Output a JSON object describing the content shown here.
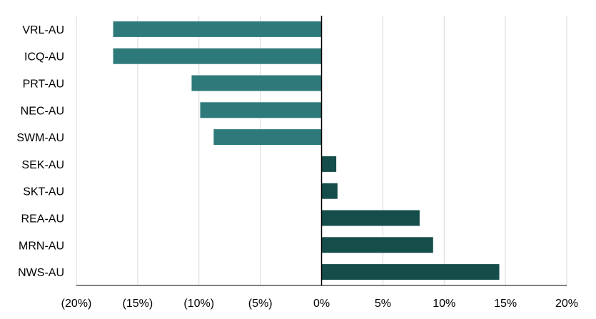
{
  "chart_data": {
    "type": "bar",
    "orientation": "horizontal",
    "title": "",
    "xlabel": "",
    "ylabel": "",
    "categories": [
      "VRL-AU",
      "ICQ-AU",
      "PRT-AU",
      "NEC-AU",
      "SWM-AU",
      "SEK-AU",
      "SKT-AU",
      "REA-AU",
      "MRN-AU",
      "NWS-AU"
    ],
    "values": [
      -17.0,
      -17.0,
      -10.6,
      -9.9,
      -8.8,
      1.2,
      1.3,
      8.0,
      9.1,
      14.5
    ],
    "xlim": [
      -20,
      20
    ],
    "xticks": [
      -20,
      -15,
      -10,
      -5,
      0,
      5,
      10,
      15,
      20
    ],
    "xtick_labels": [
      "(20%)",
      "(15%)",
      "(10%)",
      "(5%)",
      "0%",
      "5%",
      "10%",
      "15%",
      "20%"
    ],
    "grid": "vertical",
    "legend": "none",
    "colors": {
      "negative": "#2e7a7a",
      "positive": "#154d4b",
      "grid": "#d9d9d9",
      "axis": "#000000"
    }
  }
}
